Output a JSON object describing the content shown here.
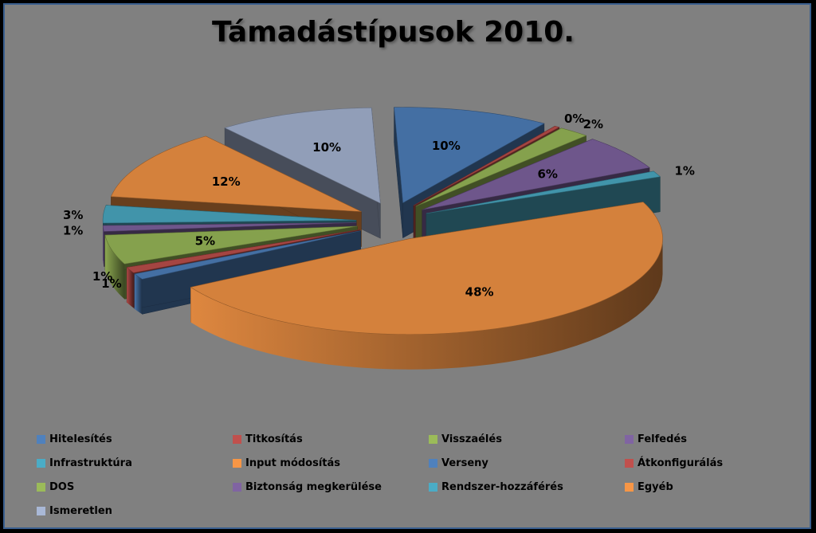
{
  "chart_data": {
    "type": "pie",
    "title": "Támadástípusok 2010.",
    "legend_position": "bottom",
    "slices": [
      {
        "label": "Hitelesítés",
        "value": 10,
        "value_label": "10%",
        "color": "#4F81BD"
      },
      {
        "label": "Titkosítás",
        "value": 0,
        "value_label": "0%",
        "color": "#C0504D"
      },
      {
        "label": "Visszaélés",
        "value": 2,
        "value_label": "2%",
        "color": "#9BBB59"
      },
      {
        "label": "Felfedés",
        "value": 6,
        "value_label": "6%",
        "color": "#8064A2"
      },
      {
        "label": "Infrastruktúra",
        "value": 1,
        "value_label": "1%",
        "color": "#4BACC6"
      },
      {
        "label": "Input módosítás",
        "value": 48,
        "value_label": "48%",
        "color": "#F79646"
      },
      {
        "label": "Verseny",
        "value": 1,
        "value_label": "1%",
        "color": "#4F81BD"
      },
      {
        "label": "Átkonfigurálás",
        "value": 1,
        "value_label": "1%",
        "color": "#C0504D"
      },
      {
        "label": "DOS",
        "value": 5,
        "value_label": "5%",
        "color": "#9BBB59"
      },
      {
        "label": "Biztonság megkerülése",
        "value": 1,
        "value_label": "1%",
        "color": "#8064A2"
      },
      {
        "label": "Rendszer-hozzáférés",
        "value": 3,
        "value_label": "3%",
        "color": "#4BACC6"
      },
      {
        "label": "Egyéb",
        "value": 12,
        "value_label": "12%",
        "color": "#F79646"
      },
      {
        "label": "Ismeretlen",
        "value": 10,
        "value_label": "10%",
        "color": "#A9B8D6"
      }
    ]
  }
}
